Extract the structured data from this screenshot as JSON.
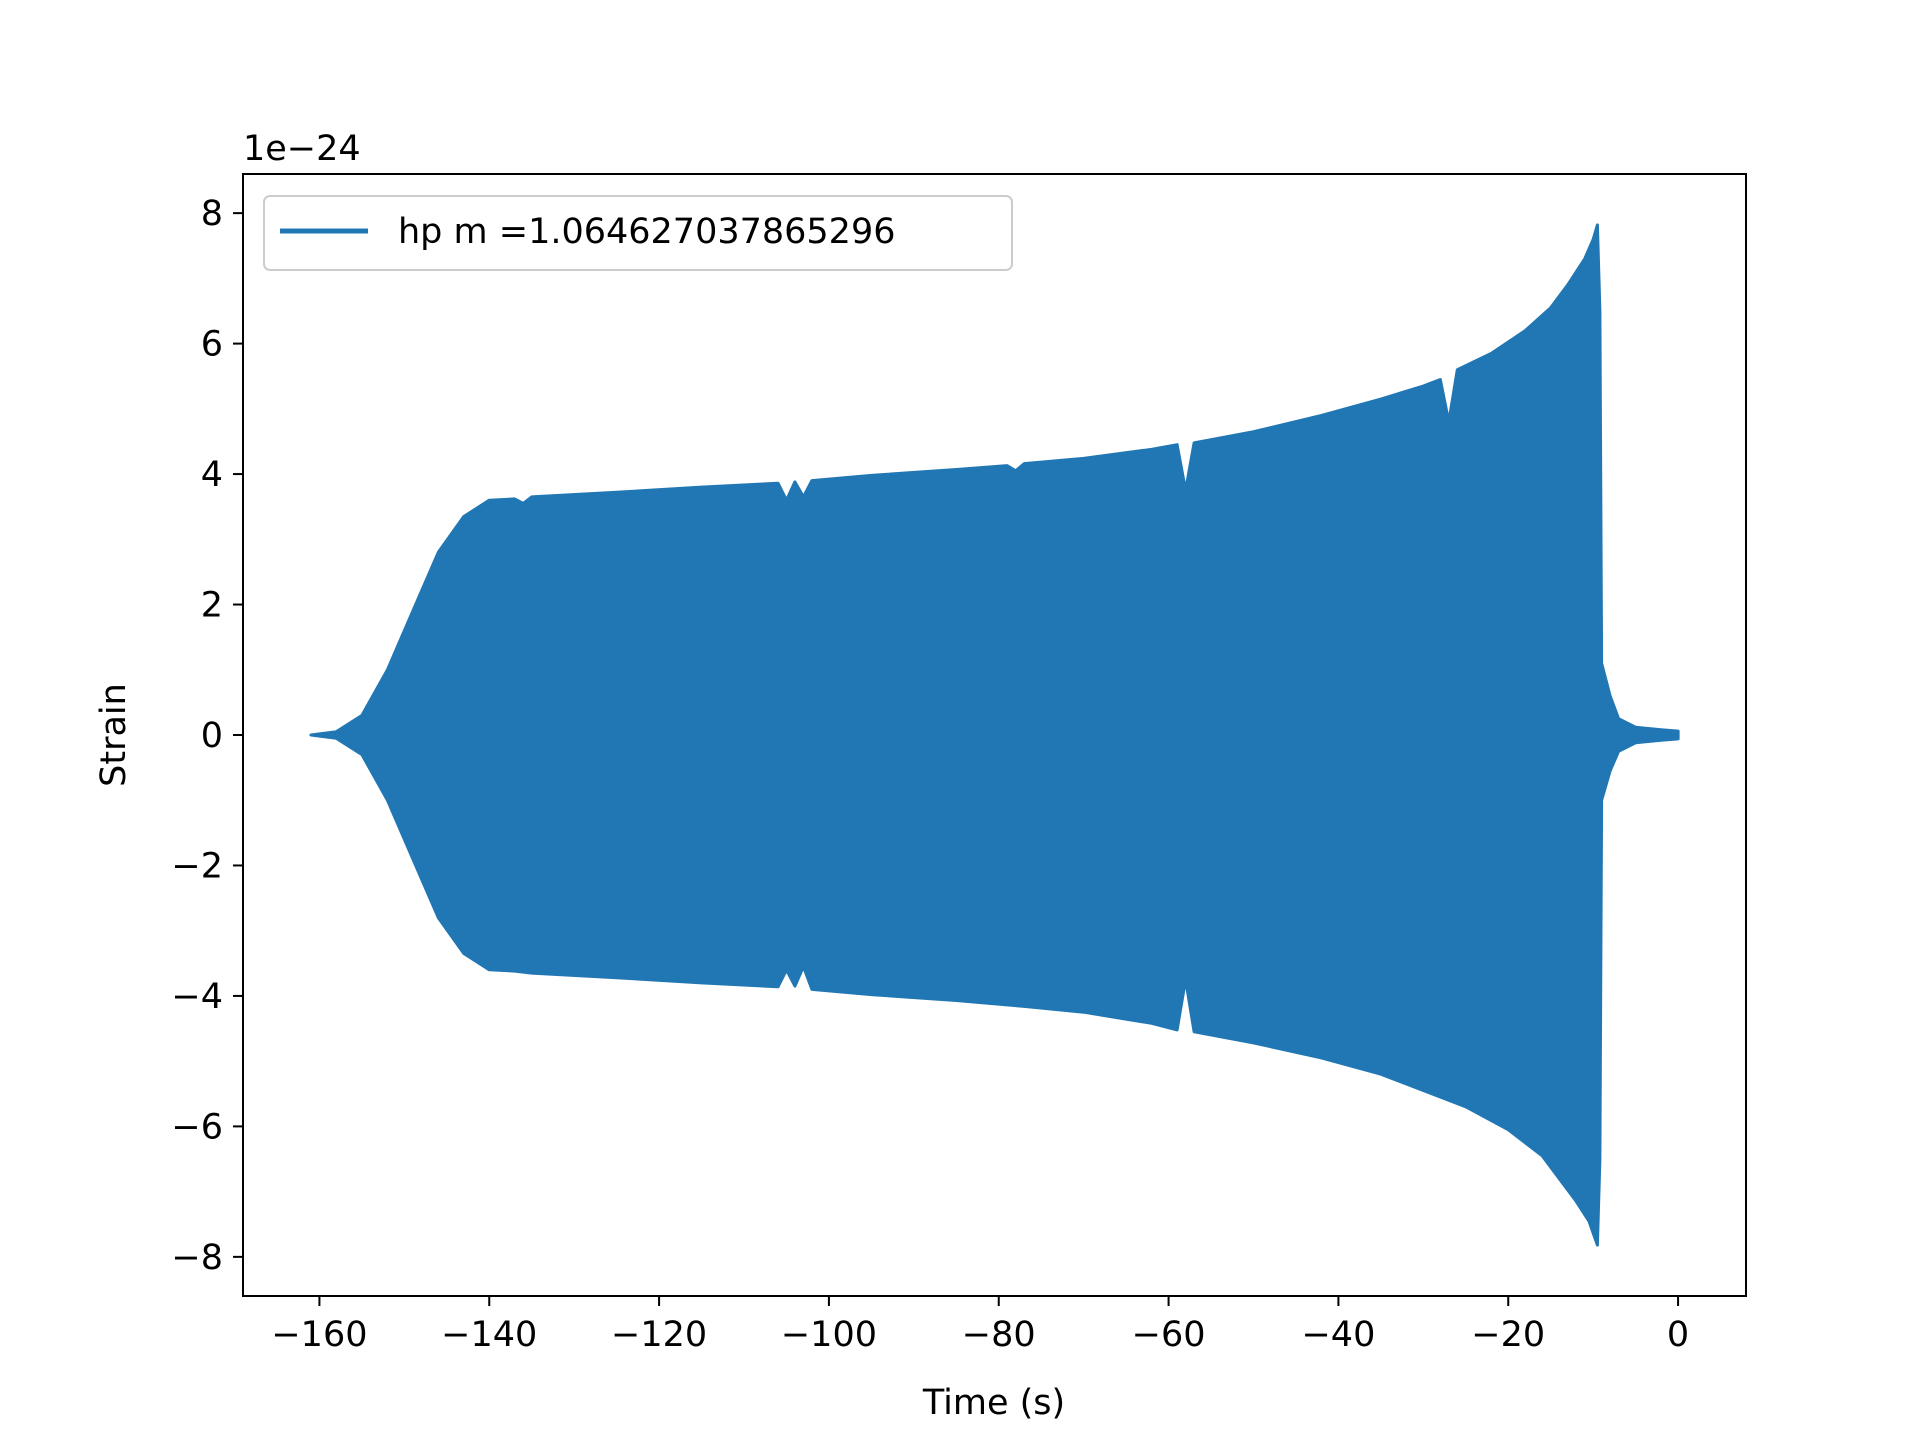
{
  "chart_data": {
    "type": "line",
    "title": "",
    "xlabel": "Time (s)",
    "ylabel": "Strain",
    "offset_label": "1e−24",
    "xlim": [
      -169,
      8
    ],
    "ylim": [
      -8.6,
      8.6
    ],
    "xticks": [
      -160,
      -140,
      -120,
      -100,
      -80,
      -60,
      -40,
      -20,
      0
    ],
    "xtick_labels": [
      "−160",
      "−140",
      "−120",
      "−100",
      "−80",
      "−60",
      "−40",
      "−20",
      "0"
    ],
    "yticks": [
      8,
      6,
      4,
      2,
      0,
      -2,
      -4,
      -6,
      -8
    ],
    "ytick_labels": [
      "8",
      "6",
      "4",
      "2",
      "0",
      "−2",
      "−4",
      "−6",
      "−8"
    ],
    "grid": false,
    "legend_position": "top-left",
    "series": [
      {
        "name": "hp m =1.064627037865296",
        "color": "#2077b4",
        "envelope_upper": [
          [
            -161,
            0.0
          ],
          [
            -158,
            0.05
          ],
          [
            -155,
            0.3
          ],
          [
            -152,
            1.0
          ],
          [
            -149,
            1.9
          ],
          [
            -146,
            2.8
          ],
          [
            -143,
            3.35
          ],
          [
            -140,
            3.6
          ],
          [
            -137,
            3.62
          ],
          [
            -136,
            3.55
          ],
          [
            -135,
            3.65
          ],
          [
            -125,
            3.72
          ],
          [
            -115,
            3.8
          ],
          [
            -106,
            3.86
          ],
          [
            -105,
            3.6
          ],
          [
            -104,
            3.88
          ],
          [
            -103,
            3.65
          ],
          [
            -102,
            3.9
          ],
          [
            -95,
            3.98
          ],
          [
            -85,
            4.07
          ],
          [
            -79,
            4.13
          ],
          [
            -78,
            4.05
          ],
          [
            -77,
            4.16
          ],
          [
            -70,
            4.24
          ],
          [
            -62,
            4.38
          ],
          [
            -59,
            4.45
          ],
          [
            -58,
            3.75
          ],
          [
            -57,
            4.48
          ],
          [
            -50,
            4.65
          ],
          [
            -42,
            4.9
          ],
          [
            -35,
            5.15
          ],
          [
            -30,
            5.35
          ],
          [
            -28,
            5.45
          ],
          [
            -27,
            4.8
          ],
          [
            -26,
            5.6
          ],
          [
            -22,
            5.85
          ],
          [
            -18,
            6.2
          ],
          [
            -15,
            6.55
          ],
          [
            -13,
            6.9
          ],
          [
            -11,
            7.3
          ],
          [
            -10,
            7.6
          ],
          [
            -9.5,
            7.82
          ],
          [
            -9.2,
            6.5
          ],
          [
            -9.0,
            1.1
          ],
          [
            -8,
            0.6
          ],
          [
            -7,
            0.25
          ],
          [
            -5,
            0.12
          ],
          [
            -2,
            0.08
          ],
          [
            0,
            0.06
          ]
        ],
        "envelope_lower": [
          [
            -161,
            0.0
          ],
          [
            -158,
            -0.05
          ],
          [
            -155,
            -0.3
          ],
          [
            -152,
            -1.0
          ],
          [
            -149,
            -1.9
          ],
          [
            -146,
            -2.8
          ],
          [
            -143,
            -3.35
          ],
          [
            -140,
            -3.6
          ],
          [
            -137,
            -3.62
          ],
          [
            -135,
            -3.65
          ],
          [
            -125,
            -3.72
          ],
          [
            -115,
            -3.8
          ],
          [
            -106,
            -3.86
          ],
          [
            -105,
            -3.6
          ],
          [
            -104,
            -3.85
          ],
          [
            -103,
            -3.55
          ],
          [
            -102,
            -3.9
          ],
          [
            -95,
            -3.98
          ],
          [
            -85,
            -4.07
          ],
          [
            -77,
            -4.16
          ],
          [
            -70,
            -4.25
          ],
          [
            -62,
            -4.42
          ],
          [
            -59,
            -4.52
          ],
          [
            -58,
            -3.75
          ],
          [
            -57,
            -4.55
          ],
          [
            -50,
            -4.72
          ],
          [
            -42,
            -4.95
          ],
          [
            -35,
            -5.2
          ],
          [
            -30,
            -5.45
          ],
          [
            -25,
            -5.7
          ],
          [
            -20,
            -6.05
          ],
          [
            -16,
            -6.45
          ],
          [
            -14,
            -6.8
          ],
          [
            -12,
            -7.15
          ],
          [
            -10.5,
            -7.45
          ],
          [
            -9.5,
            -7.82
          ],
          [
            -9.2,
            -6.5
          ],
          [
            -9.0,
            -1.0
          ],
          [
            -8,
            -0.55
          ],
          [
            -7,
            -0.25
          ],
          [
            -5,
            -0.12
          ],
          [
            -2,
            -0.08
          ],
          [
            0,
            -0.06
          ]
        ]
      }
    ]
  }
}
